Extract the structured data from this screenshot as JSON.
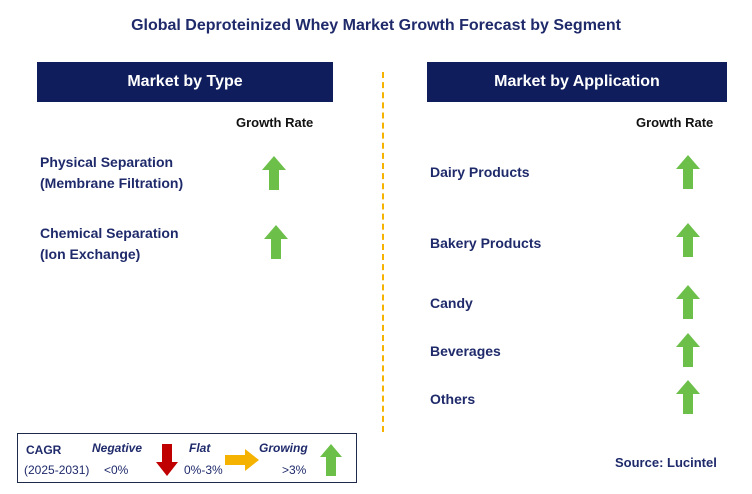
{
  "title": "Global Deproteinized Whey Market Growth Forecast by Segment",
  "left_panel": {
    "header": "Market by Type",
    "growth_label": "Growth Rate",
    "items": [
      {
        "line1": "Physical Separation",
        "line2": "(Membrane Filtration)",
        "trend": "growing"
      },
      {
        "line1": "Chemical Separation",
        "line2": "(Ion Exchange)",
        "trend": "growing"
      }
    ]
  },
  "right_panel": {
    "header": "Market by Application",
    "growth_label": "Growth Rate",
    "items": [
      {
        "label": "Dairy Products",
        "trend": "growing"
      },
      {
        "label": "Bakery Products",
        "trend": "growing"
      },
      {
        "label": "Candy",
        "trend": "growing"
      },
      {
        "label": "Beverages",
        "trend": "growing"
      },
      {
        "label": "Others",
        "trend": "growing"
      }
    ]
  },
  "legend": {
    "cagr_label": "CAGR",
    "period": "(2025-2031)",
    "negative_label": "Negative",
    "negative_range": "<0%",
    "flat_label": "Flat",
    "flat_range": "0%-3%",
    "growing_label": "Growing",
    "growing_range": ">3%"
  },
  "source": "Source: Lucintel",
  "colors": {
    "header_bg": "#0f1d5c",
    "growing_arrow": "#6cc04a",
    "negative_arrow": "#c00000",
    "flat_arrow": "#f5b300",
    "divider": "#f5b300"
  },
  "icons": {
    "growing": "green-up-arrow-icon",
    "negative": "red-down-arrow-icon",
    "flat": "yellow-right-arrow-icon"
  }
}
